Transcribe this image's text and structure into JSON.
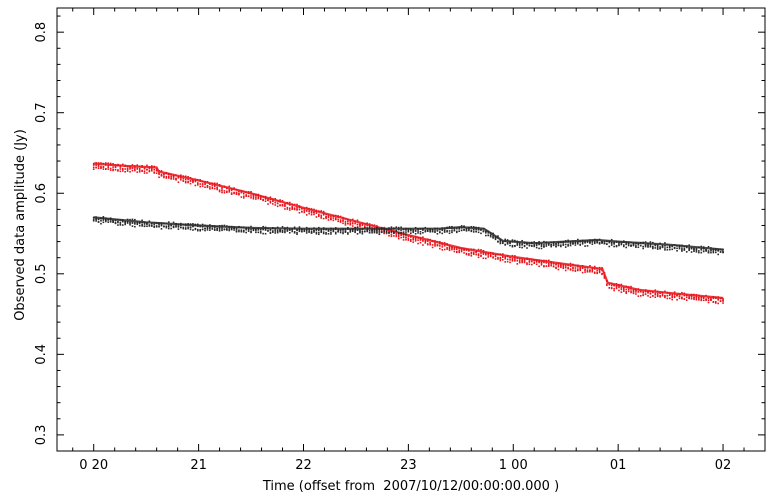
{
  "chart_data": {
    "type": "scatter",
    "title": "",
    "xlabel_prefix": "Time (offset from",
    "xlabel_date": "2007/10/12/00:00:00.000",
    "xlabel_suffix": ")",
    "ylabel": "Observed data amplitude (Jy)",
    "xlim_hours": [
      19.65,
      26.4
    ],
    "ylim": [
      0.28,
      0.83
    ],
    "x_ticks": [
      {
        "hours": 20,
        "label": "0 20"
      },
      {
        "hours": 21,
        "label": "21"
      },
      {
        "hours": 22,
        "label": "22"
      },
      {
        "hours": 23,
        "label": "23"
      },
      {
        "hours": 24,
        "label": "1 00"
      },
      {
        "hours": 25,
        "label": "01"
      },
      {
        "hours": 26,
        "label": "02"
      }
    ],
    "y_ticks": [
      {
        "value": 0.3,
        "label": "0.3"
      },
      {
        "value": 0.4,
        "label": "0.4"
      },
      {
        "value": 0.5,
        "label": "0.5"
      },
      {
        "value": 0.6,
        "label": "0.6"
      },
      {
        "value": 0.7,
        "label": "0.7"
      },
      {
        "value": 0.8,
        "label": "0.8"
      }
    ],
    "series": [
      {
        "color": "#e8141b",
        "spread": 0.006,
        "points": [
          {
            "x": 20.0,
            "y": 0.637
          },
          {
            "x": 20.3,
            "y": 0.634
          },
          {
            "x": 20.6,
            "y": 0.632
          },
          {
            "x": 20.62,
            "y": 0.627
          },
          {
            "x": 21.0,
            "y": 0.616
          },
          {
            "x": 21.5,
            "y": 0.6
          },
          {
            "x": 22.0,
            "y": 0.582
          },
          {
            "x": 22.5,
            "y": 0.565
          },
          {
            "x": 23.0,
            "y": 0.548
          },
          {
            "x": 23.5,
            "y": 0.532
          },
          {
            "x": 24.0,
            "y": 0.521
          },
          {
            "x": 24.5,
            "y": 0.512
          },
          {
            "x": 24.85,
            "y": 0.506
          },
          {
            "x": 24.9,
            "y": 0.489
          },
          {
            "x": 25.2,
            "y": 0.48
          },
          {
            "x": 25.5,
            "y": 0.476
          },
          {
            "x": 26.0,
            "y": 0.47
          }
        ]
      },
      {
        "color": "#2a2a2a",
        "spread": 0.005,
        "points": [
          {
            "x": 20.0,
            "y": 0.57
          },
          {
            "x": 20.5,
            "y": 0.564
          },
          {
            "x": 21.0,
            "y": 0.56
          },
          {
            "x": 21.5,
            "y": 0.557
          },
          {
            "x": 22.0,
            "y": 0.556
          },
          {
            "x": 22.5,
            "y": 0.556
          },
          {
            "x": 23.0,
            "y": 0.556
          },
          {
            "x": 23.3,
            "y": 0.556
          },
          {
            "x": 23.5,
            "y": 0.558
          },
          {
            "x": 23.72,
            "y": 0.556
          },
          {
            "x": 23.9,
            "y": 0.541
          },
          {
            "x": 24.2,
            "y": 0.538
          },
          {
            "x": 24.5,
            "y": 0.54
          },
          {
            "x": 24.8,
            "y": 0.542
          },
          {
            "x": 25.0,
            "y": 0.54
          },
          {
            "x": 25.5,
            "y": 0.536
          },
          {
            "x": 26.0,
            "y": 0.53
          }
        ]
      }
    ]
  }
}
